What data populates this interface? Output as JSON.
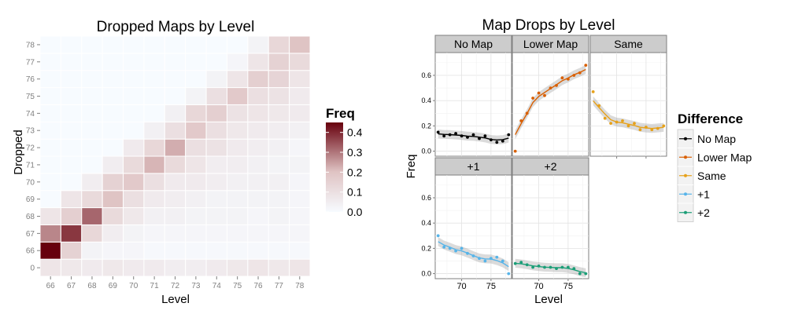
{
  "heatmap": {
    "title": "Dropped Maps by Level",
    "xlabel": "Level",
    "ylabel": "Dropped",
    "x_ticks": [
      "66",
      "67",
      "68",
      "69",
      "70",
      "71",
      "72",
      "73",
      "74",
      "75",
      "76",
      "77",
      "78"
    ],
    "y_ticks": [
      "0",
      "66",
      "67",
      "68",
      "69",
      "70",
      "71",
      "72",
      "73",
      "74",
      "75",
      "76",
      "77",
      "78"
    ],
    "legend": {
      "title": "Freq",
      "ticks": [
        "0.4",
        "0.3",
        "0.2",
        "0.1",
        "0.0"
      ],
      "low_color": "#f7fbff",
      "high_color": "#67000d"
    }
  },
  "facets": {
    "title": "Map Drops by Level",
    "xlabel": "Level",
    "ylabel": "Freq",
    "x_ticks": [
      "70",
      "75"
    ],
    "y_ticks": [
      "0.0",
      "0.2",
      "0.4",
      "0.6"
    ],
    "panel_labels": [
      "No Map",
      "Lower Map",
      "Same",
      "+1",
      "+2"
    ],
    "legend": {
      "title": "Difference",
      "items": [
        {
          "label": "No Map",
          "color": "#000000"
        },
        {
          "label": "Lower Map",
          "color": "#d95f02"
        },
        {
          "label": "Same",
          "color": "#e6a11a"
        },
        {
          "label": "+1",
          "color": "#56b4e9"
        },
        {
          "label": "+2",
          "color": "#1b9e77"
        }
      ]
    }
  },
  "chart_data": [
    {
      "type": "heatmap",
      "title": "Dropped Maps by Level",
      "xlabel": "Level",
      "ylabel": "Dropped",
      "x": [
        66,
        67,
        68,
        69,
        70,
        71,
        72,
        73,
        74,
        75,
        76,
        77,
        78
      ],
      "y": [
        "0",
        "66",
        "67",
        "68",
        "69",
        "70",
        "71",
        "72",
        "73",
        "74",
        "75",
        "76",
        "77",
        "78"
      ],
      "value_range": [
        0,
        0.45
      ],
      "values": [
        [
          0.08,
          0.07,
          0.06,
          0.07,
          0.06,
          0.06,
          0.05,
          0.05,
          0.06,
          0.07,
          0.08,
          0.07,
          0.08
        ],
        [
          0.45,
          0.15,
          0.03,
          0.02,
          0.02,
          0.01,
          0.01,
          0.01,
          0.01,
          0.01,
          0.01,
          0.01,
          0.01
        ],
        [
          0.28,
          0.38,
          0.13,
          0.05,
          0.03,
          0.02,
          0.02,
          0.02,
          0.02,
          0.02,
          0.02,
          0.02,
          0.02
        ],
        [
          0.08,
          0.16,
          0.32,
          0.12,
          0.07,
          0.04,
          0.04,
          0.03,
          0.03,
          0.03,
          0.02,
          0.03,
          0.02
        ],
        [
          0,
          0.08,
          0.12,
          0.2,
          0.1,
          0.06,
          0.05,
          0.04,
          0.03,
          0.03,
          0.03,
          0.03,
          0.02
        ],
        [
          0,
          0,
          0.05,
          0.15,
          0.18,
          0.1,
          0.06,
          0.06,
          0.05,
          0.04,
          0.04,
          0.04,
          0.02
        ],
        [
          0,
          0,
          0,
          0.05,
          0.12,
          0.22,
          0.12,
          0.08,
          0.05,
          0.05,
          0.04,
          0.03,
          0.03
        ],
        [
          0,
          0,
          0,
          0,
          0.06,
          0.13,
          0.23,
          0.1,
          0.09,
          0.06,
          0.05,
          0.04,
          0.02
        ],
        [
          0,
          0,
          0,
          0,
          0,
          0.04,
          0.1,
          0.18,
          0.1,
          0.07,
          0.06,
          0.05,
          0.04
        ],
        [
          0,
          0,
          0,
          0,
          0,
          0,
          0.04,
          0.13,
          0.16,
          0.09,
          0.08,
          0.07,
          0.06
        ],
        [
          0,
          0,
          0,
          0,
          0,
          0,
          0,
          0.03,
          0.1,
          0.18,
          0.1,
          0.09,
          0.06
        ],
        [
          0,
          0,
          0,
          0,
          0,
          0,
          0,
          0,
          0.03,
          0.08,
          0.16,
          0.14,
          0.08
        ],
        [
          0,
          0,
          0,
          0,
          0,
          0,
          0,
          0,
          0,
          0.02,
          0.08,
          0.15,
          0.12
        ],
        [
          0,
          0,
          0,
          0,
          0,
          0,
          0,
          0,
          0,
          0,
          0.03,
          0.13,
          0.2
        ]
      ]
    },
    {
      "type": "scatter",
      "title": "Map Drops by Level",
      "xlabel": "Level",
      "ylabel": "Freq",
      "xlim": [
        65.5,
        78.5
      ],
      "ylim": [
        -0.04,
        0.78
      ],
      "smooth": true,
      "legend_title": "Difference",
      "series": [
        {
          "name": "No Map",
          "panel": "No Map",
          "color": "#000000",
          "x": [
            66,
            67,
            68,
            69,
            70,
            71,
            72,
            73,
            74,
            75,
            76,
            77,
            78
          ],
          "y": [
            0.15,
            0.12,
            0.13,
            0.14,
            0.12,
            0.11,
            0.13,
            0.1,
            0.12,
            0.09,
            0.07,
            0.08,
            0.13
          ]
        },
        {
          "name": "Lower Map",
          "panel": "Lower Map",
          "color": "#d95f02",
          "x": [
            66,
            67,
            68,
            69,
            70,
            71,
            72,
            73,
            74,
            75,
            76,
            77,
            78
          ],
          "y": [
            0.0,
            0.24,
            0.3,
            0.42,
            0.46,
            0.44,
            0.5,
            0.52,
            0.58,
            0.57,
            0.6,
            0.62,
            0.68
          ]
        },
        {
          "name": "Same",
          "panel": "Same",
          "color": "#e6a11a",
          "x": [
            66,
            67,
            68,
            69,
            70,
            71,
            72,
            73,
            74,
            75,
            76,
            77,
            78
          ],
          "y": [
            0.47,
            0.36,
            0.26,
            0.22,
            0.23,
            0.24,
            0.2,
            0.22,
            0.17,
            0.19,
            0.17,
            0.18,
            0.2
          ]
        },
        {
          "name": "+1",
          "panel": "+1",
          "color": "#56b4e9",
          "x": [
            66,
            67,
            68,
            69,
            70,
            71,
            72,
            73,
            74,
            75,
            76,
            77,
            78
          ],
          "y": [
            0.3,
            0.21,
            0.2,
            0.18,
            0.2,
            0.16,
            0.14,
            0.12,
            0.1,
            0.12,
            0.13,
            0.1,
            0.0
          ]
        },
        {
          "name": "+2",
          "panel": "+2",
          "color": "#1b9e77",
          "x": [
            66,
            67,
            68,
            69,
            70,
            71,
            72,
            73,
            74,
            75,
            76,
            77,
            78
          ],
          "y": [
            0.08,
            0.09,
            0.07,
            0.05,
            0.06,
            0.05,
            0.05,
            0.04,
            0.05,
            0.05,
            0.04,
            0.0,
            0.0
          ]
        }
      ]
    }
  ]
}
